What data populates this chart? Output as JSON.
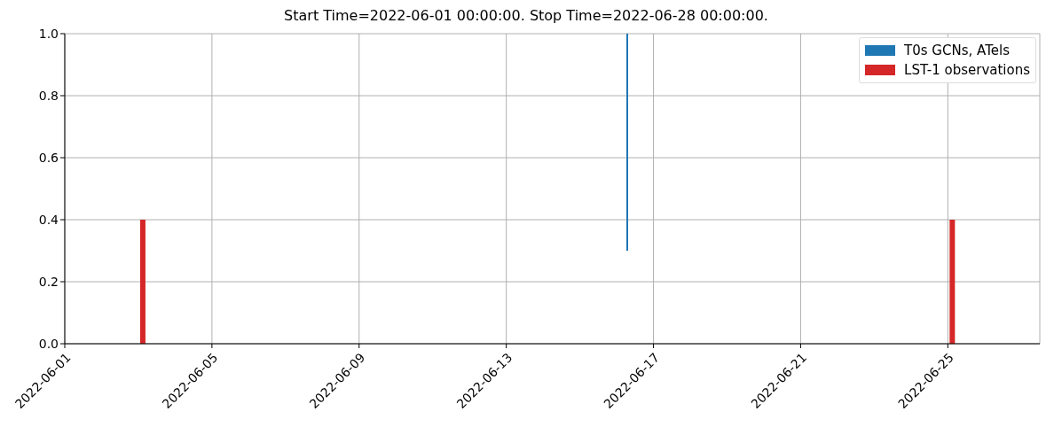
{
  "chart_data": {
    "type": "bar",
    "title": "Start Time=2022-06-01 00:00:00. Stop Time=2022-06-28 00:00:00.",
    "series": [
      {
        "name": "T0s GCNs, ATels",
        "color": "#1f77b4",
        "x": [
          "2022-06-16T07:00"
        ],
        "base": [
          0.3
        ],
        "values": [
          0.7
        ]
      },
      {
        "name": "LST-1 observations",
        "color": "#d62728",
        "x": [
          "2022-06-03T03:00",
          "2022-06-25T03:00"
        ],
        "values": [
          0.4,
          0.4
        ]
      }
    ],
    "xlim": [
      "2022-06-01",
      "2022-06-27T12:00"
    ],
    "xticks": [
      "2022-06-01",
      "2022-06-05",
      "2022-06-09",
      "2022-06-13",
      "2022-06-17",
      "2022-06-21",
      "2022-06-25"
    ],
    "ylim": [
      0,
      1
    ],
    "yticks": [
      {
        "value": 0,
        "label": "0.0"
      },
      {
        "value": 0.2,
        "label": "0.2"
      },
      {
        "value": 0.4,
        "label": "0.4"
      },
      {
        "value": 0.6,
        "label": "0.6"
      },
      {
        "value": 0.8,
        "label": "0.8"
      },
      {
        "value": 1,
        "label": "1.0"
      }
    ],
    "grid": true,
    "legend": "top right"
  }
}
